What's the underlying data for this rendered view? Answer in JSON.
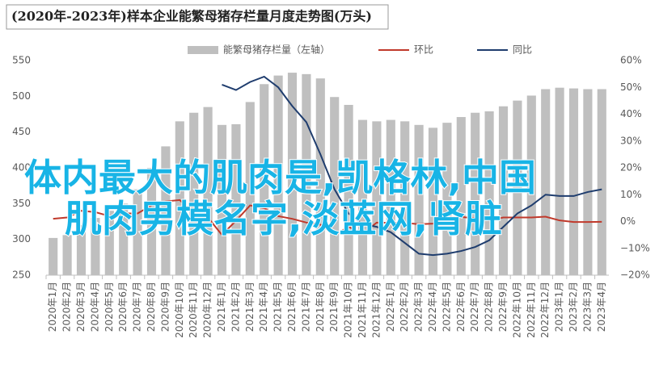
{
  "chart_data": {
    "type": "combo",
    "title": "(2020年-2023年)样本企业能繁母猪存栏量月度走势图(万头)",
    "categories": [
      "2020年1月",
      "2020年2月",
      "2020年3月",
      "2020年4月",
      "2020年5月",
      "2020年6月",
      "2020年7月",
      "2020年8月",
      "2020年9月",
      "2020年10月",
      "2020年11月",
      "2020年12月",
      "2021年1月",
      "2021年2月",
      "2021年3月",
      "2021年4月",
      "2021年5月",
      "2021年6月",
      "2021年7月",
      "2021年8月",
      "2021年9月",
      "2021年10月",
      "2021年11月",
      "2021年12月",
      "2022年1月",
      "2022年2月",
      "2022年3月",
      "2022年4月",
      "2022年5月",
      "2022年6月",
      "2022年7月",
      "2022年8月",
      "2022年9月",
      "2022年10月",
      "2022年11月",
      "2022年12月",
      "2023年1月",
      "2023年2月",
      "2023年3月",
      "2023年4月"
    ],
    "series": [
      {
        "name": "能繁母猪存栏量（左轴）",
        "type": "bar",
        "color": "#bfbfbf",
        "values": [
          302,
          306,
          320,
          330,
          340,
          350,
          370,
          400,
          430,
          465,
          477,
          485,
          460,
          461,
          492,
          517,
          529,
          533,
          531,
          525,
          499,
          488,
          467,
          465,
          467,
          465,
          460,
          456,
          463,
          471,
          477,
          479,
          486,
          494,
          501,
          510,
          512,
          511,
          510,
          510
        ]
      },
      {
        "name": "环比",
        "type": "line",
        "axis": "y2",
        "color": "#c0392b",
        "values": [
          1,
          1.5,
          4,
          3.5,
          2,
          3,
          3,
          6,
          7.5,
          8,
          3,
          1.5,
          -5,
          0.3,
          6,
          5,
          2,
          1,
          -0.4,
          -1.2,
          -5,
          -2,
          -4.5,
          -0.4,
          -0.5,
          -0.5,
          -1,
          -0.8,
          1.5,
          1.7,
          1.2,
          0.5,
          1.5,
          1.5,
          1.5,
          1.8,
          0.4,
          -0.2,
          -0.2,
          -0.1
        ]
      },
      {
        "name": "同比",
        "type": "line",
        "axis": "y2",
        "color": "#1f3d6e",
        "values": [
          null,
          null,
          null,
          null,
          null,
          null,
          null,
          null,
          null,
          null,
          null,
          null,
          51,
          49,
          52,
          54,
          50,
          43,
          37,
          25,
          12,
          3,
          -1,
          -2,
          -4,
          -8,
          -12,
          -12.5,
          -12,
          -11,
          -9.5,
          -7,
          -2,
          3,
          6,
          10,
          9.5,
          9.5,
          11,
          12
        ]
      }
    ],
    "ylim": [
      250,
      550
    ],
    "yticks": [
      250,
      300,
      350,
      400,
      450,
      500,
      550
    ],
    "y2lim": [
      -20,
      60
    ],
    "y2ticks": [
      {
        "value": -20,
        "label": "−20%"
      },
      {
        "value": -10,
        "label": "−10%"
      },
      {
        "value": 0,
        "label": "0%"
      },
      {
        "value": 10,
        "label": "10%"
      },
      {
        "value": 20,
        "label": "20%"
      },
      {
        "value": 30,
        "label": "30%"
      },
      {
        "value": 40,
        "label": "40%"
      },
      {
        "value": 50,
        "label": "50%"
      },
      {
        "value": 60,
        "label": "60%"
      }
    ],
    "annotations": [
      "体内最大的肌肉是,凯格林,中国",
      "肌肉男模名字,淡蓝网,肾脏"
    ]
  }
}
